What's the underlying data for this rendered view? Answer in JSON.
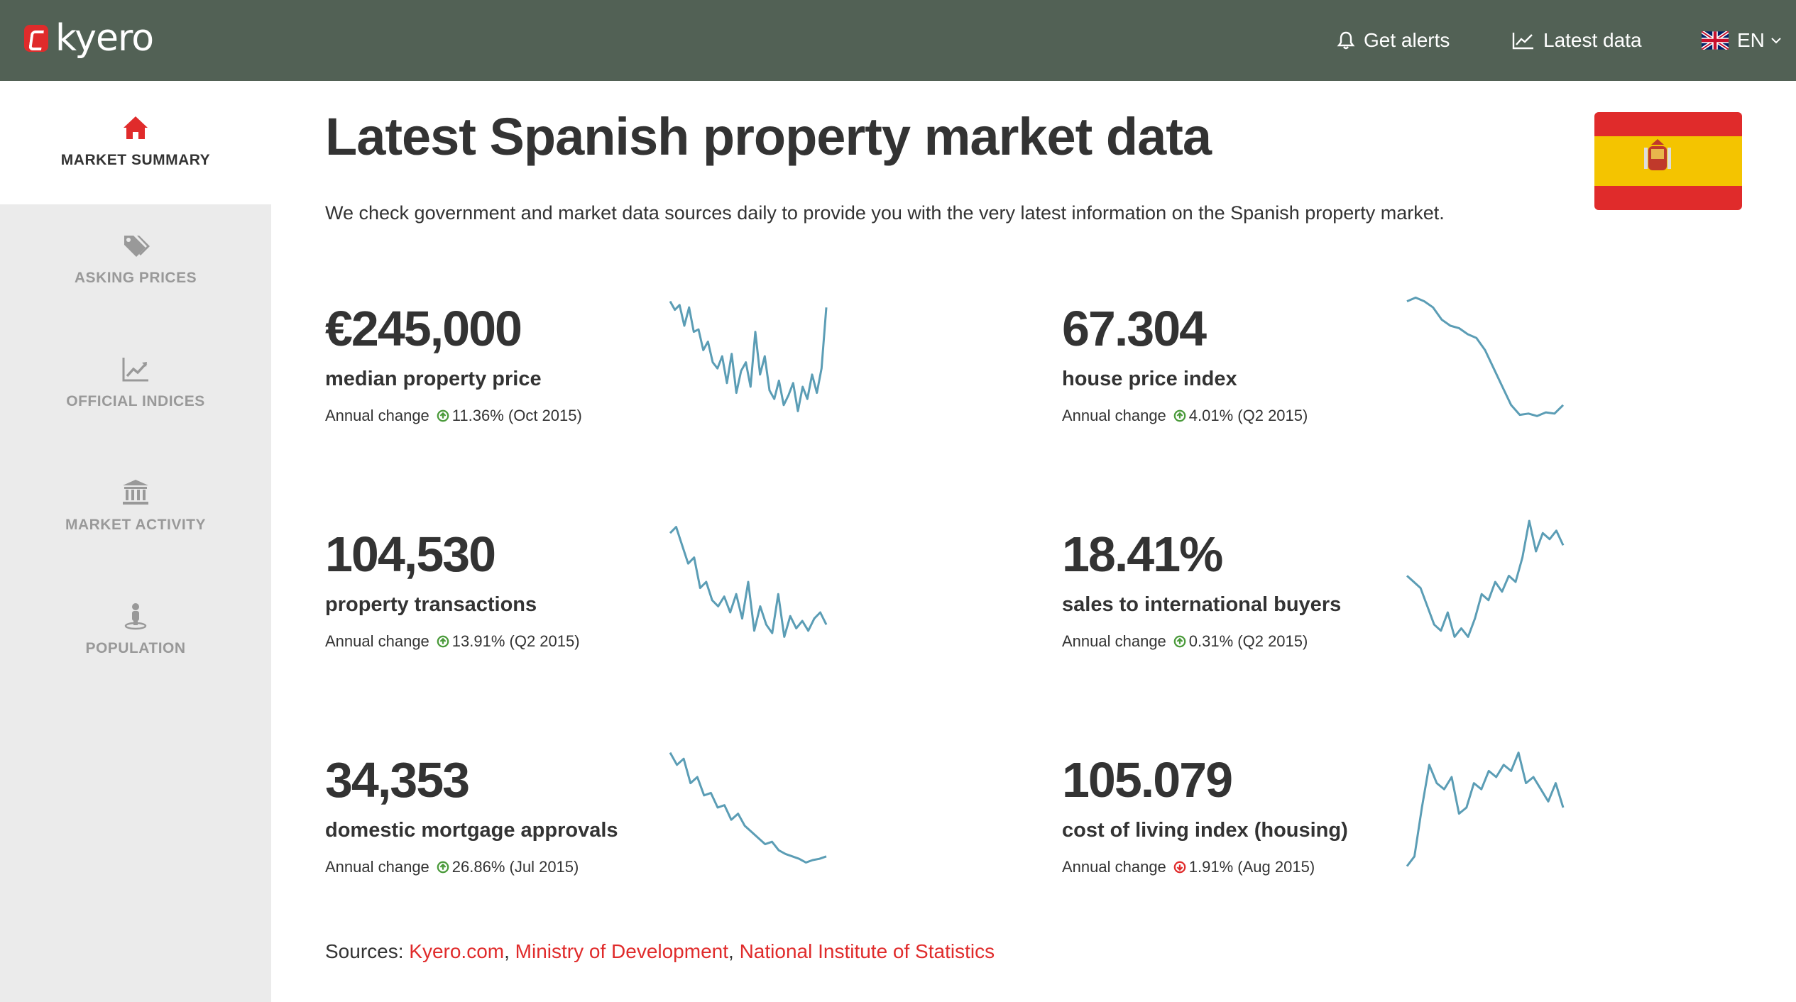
{
  "brand": {
    "name": "kyero",
    "accent": "#e02b2b",
    "topbar_color": "#526155"
  },
  "nav": {
    "alerts": "Get alerts",
    "latest_data": "Latest data",
    "language": "EN"
  },
  "sidebar": {
    "items": [
      {
        "label": "MARKET SUMMARY",
        "icon": "home-icon",
        "active": true
      },
      {
        "label": "ASKING PRICES",
        "icon": "tags-icon",
        "active": false
      },
      {
        "label": "OFFICIAL INDICES",
        "icon": "line-chart-icon",
        "active": false
      },
      {
        "label": "MARKET ACTIVITY",
        "icon": "bank-icon",
        "active": false
      },
      {
        "label": "POPULATION",
        "icon": "person-pin-icon",
        "active": false
      }
    ]
  },
  "page": {
    "title": "Latest Spanish property market data",
    "intro": "We check government and market data sources daily to provide you with the very latest information on the Spanish property market."
  },
  "stats": [
    {
      "value": "€245,000",
      "label": "median property price",
      "change_label": "Annual change",
      "change": "11.36% (Oct 2015)",
      "direction": "up"
    },
    {
      "value": "67.304",
      "label": "house price index",
      "change_label": "Annual change",
      "change": "4.01% (Q2 2015)",
      "direction": "up"
    },
    {
      "value": "104,530",
      "label": "property transactions",
      "change_label": "Annual change",
      "change": "13.91% (Q2 2015)",
      "direction": "up"
    },
    {
      "value": "18.41%",
      "label": "sales to international buyers",
      "change_label": "Annual change",
      "change": "0.31% (Q2 2015)",
      "direction": "up"
    },
    {
      "value": "34,353",
      "label": "domestic mortgage approvals",
      "change_label": "Annual change",
      "change": "26.86% (Jul 2015)",
      "direction": "up"
    },
    {
      "value": "105.079",
      "label": "cost of living index (housing)",
      "change_label": "Annual change",
      "change": "1.91% (Aug 2015)",
      "direction": "down"
    }
  ],
  "sparklines": {
    "color": "#5b9db5",
    "series": [
      [
        0.05,
        0.12,
        0.08,
        0.25,
        0.1,
        0.3,
        0.28,
        0.45,
        0.38,
        0.55,
        0.6,
        0.5,
        0.72,
        0.48,
        0.8,
        0.62,
        0.55,
        0.75,
        0.3,
        0.65,
        0.5,
        0.78,
        0.85,
        0.7,
        0.9,
        0.82,
        0.72,
        0.95,
        0.75,
        0.85,
        0.65,
        0.8,
        0.6,
        0.1
      ],
      [
        0.05,
        0.02,
        0.05,
        0.1,
        0.2,
        0.25,
        0.27,
        0.32,
        0.35,
        0.45,
        0.6,
        0.75,
        0.9,
        0.98,
        0.97,
        0.99,
        0.96,
        0.97,
        0.9
      ],
      [
        0.1,
        0.05,
        0.2,
        0.35,
        0.3,
        0.55,
        0.5,
        0.65,
        0.7,
        0.62,
        0.75,
        0.6,
        0.8,
        0.5,
        0.9,
        0.7,
        0.85,
        0.92,
        0.6,
        0.95,
        0.78,
        0.88,
        0.82,
        0.9,
        0.8,
        0.75,
        0.85
      ],
      [
        0.45,
        0.5,
        0.55,
        0.7,
        0.85,
        0.9,
        0.75,
        0.95,
        0.88,
        0.95,
        0.8,
        0.6,
        0.65,
        0.5,
        0.58,
        0.45,
        0.5,
        0.3,
        0.0,
        0.25,
        0.1,
        0.15,
        0.08,
        0.2
      ],
      [
        0.05,
        0.15,
        0.1,
        0.3,
        0.25,
        0.4,
        0.38,
        0.5,
        0.48,
        0.6,
        0.55,
        0.65,
        0.7,
        0.75,
        0.8,
        0.78,
        0.85,
        0.88,
        0.9,
        0.92,
        0.95,
        0.93,
        0.92,
        0.9
      ],
      [
        0.98,
        0.9,
        0.5,
        0.15,
        0.3,
        0.35,
        0.25,
        0.55,
        0.5,
        0.3,
        0.35,
        0.2,
        0.25,
        0.15,
        0.2,
        0.05,
        0.3,
        0.25,
        0.35,
        0.45,
        0.3,
        0.5
      ]
    ]
  },
  "sources": {
    "prefix": "Sources:",
    "links": [
      "Kyero.com",
      "Ministry of Development",
      "National Institute of Statistics"
    ]
  }
}
